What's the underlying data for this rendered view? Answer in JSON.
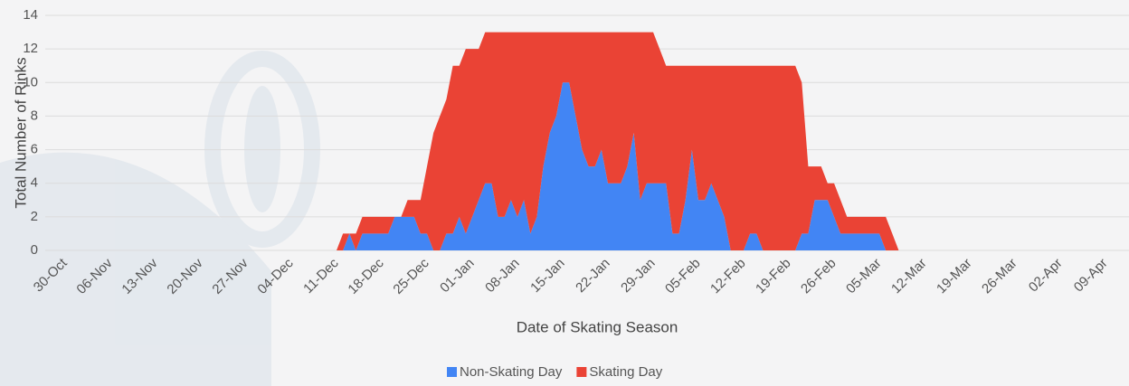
{
  "chart_data": {
    "type": "stacked-area",
    "y_label": "Total Number of Rinks",
    "x_label": "Date of Skating Season",
    "categories": [
      "30-Oct",
      null,
      null,
      null,
      null,
      null,
      null,
      "06-Nov",
      null,
      null,
      null,
      null,
      null,
      null,
      "13-Nov",
      null,
      null,
      null,
      null,
      null,
      null,
      "20-Nov",
      null,
      null,
      null,
      null,
      null,
      null,
      "27-Nov",
      null,
      null,
      null,
      null,
      null,
      null,
      "04-Dec",
      null,
      null,
      null,
      null,
      null,
      null,
      "11-Dec",
      null,
      null,
      null,
      null,
      null,
      null,
      "18-Dec",
      null,
      null,
      null,
      null,
      null,
      null,
      "25-Dec",
      null,
      null,
      null,
      null,
      null,
      null,
      "01-Jan",
      null,
      null,
      null,
      null,
      null,
      null,
      "08-Jan",
      null,
      null,
      null,
      null,
      null,
      null,
      "15-Jan",
      null,
      null,
      null,
      null,
      null,
      null,
      "22-Jan",
      null,
      null,
      null,
      null,
      null,
      null,
      "29-Jan",
      null,
      null,
      null,
      null,
      null,
      null,
      "05-Feb",
      null,
      null,
      null,
      null,
      null,
      null,
      "12-Feb",
      null,
      null,
      null,
      null,
      null,
      null,
      "19-Feb",
      null,
      null,
      null,
      null,
      null,
      null,
      "26-Feb",
      null,
      null,
      null,
      null,
      null,
      null,
      "05-Mar",
      null,
      null,
      null,
      null,
      null,
      null,
      "12-Mar",
      null,
      null,
      null,
      null,
      null,
      null,
      "19-Mar",
      null,
      null,
      null,
      null,
      null,
      null,
      "26-Mar",
      null,
      null,
      null,
      null,
      null,
      null,
      "02-Apr",
      null,
      null,
      null,
      null,
      null,
      null,
      "09-Apr"
    ],
    "series": [
      {
        "name": "Non-Skating Day",
        "color": "#4285f4",
        "values": [
          null,
          null,
          null,
          null,
          null,
          null,
          null,
          null,
          null,
          null,
          null,
          null,
          null,
          null,
          null,
          null,
          null,
          null,
          null,
          null,
          null,
          null,
          null,
          null,
          null,
          null,
          null,
          null,
          null,
          null,
          null,
          null,
          null,
          null,
          null,
          null,
          null,
          null,
          null,
          null,
          null,
          null,
          0,
          0,
          1,
          0,
          1,
          1,
          1,
          1,
          1,
          2,
          2,
          2,
          2,
          1,
          1,
          0,
          0,
          1,
          1,
          2,
          1,
          2,
          3,
          4,
          4,
          2,
          2,
          3,
          2,
          3,
          1,
          2,
          5,
          7,
          8,
          10,
          10,
          8,
          6,
          5,
          5,
          6,
          4,
          4,
          4,
          5,
          7,
          3,
          4,
          4,
          4,
          4,
          1,
          1,
          3,
          6,
          3,
          3,
          4,
          3,
          2,
          0,
          0,
          0,
          1,
          1,
          0,
          0,
          0,
          0,
          0,
          0,
          1,
          1,
          3,
          3,
          3,
          2,
          1,
          1,
          1,
          1,
          1,
          1,
          1,
          0,
          0,
          0,
          null,
          null,
          null,
          null,
          null,
          null,
          null,
          null,
          null,
          null,
          null,
          null,
          null,
          null,
          null,
          null,
          null,
          null,
          null,
          null,
          null,
          null,
          null,
          null,
          null,
          null,
          null,
          null,
          null,
          null,
          null,
          null
        ]
      },
      {
        "name": "Skating Day",
        "color": "#ea4335",
        "values": [
          null,
          null,
          null,
          null,
          null,
          null,
          null,
          null,
          null,
          null,
          null,
          null,
          null,
          null,
          null,
          null,
          null,
          null,
          null,
          null,
          null,
          null,
          null,
          null,
          null,
          null,
          null,
          null,
          null,
          null,
          null,
          null,
          null,
          null,
          null,
          null,
          null,
          null,
          null,
          null,
          null,
          null,
          0,
          1,
          0,
          1,
          1,
          1,
          1,
          1,
          1,
          0,
          0,
          1,
          1,
          2,
          4,
          7,
          8,
          8,
          10,
          9,
          11,
          10,
          9,
          9,
          9,
          11,
          11,
          10,
          11,
          10,
          12,
          11,
          8,
          6,
          5,
          3,
          3,
          5,
          7,
          8,
          8,
          7,
          9,
          9,
          9,
          8,
          6,
          10,
          9,
          9,
          8,
          7,
          10,
          10,
          8,
          5,
          8,
          8,
          7,
          8,
          9,
          11,
          11,
          11,
          10,
          10,
          11,
          11,
          11,
          11,
          11,
          11,
          9,
          4,
          2,
          2,
          1,
          2,
          2,
          1,
          1,
          1,
          1,
          1,
          1,
          2,
          1,
          0,
          null,
          null,
          null,
          null,
          null,
          null,
          null,
          null,
          null,
          null,
          null,
          null,
          null,
          null,
          null,
          null,
          null,
          null,
          null,
          null,
          null,
          null,
          null,
          null,
          null,
          null,
          null,
          null,
          null,
          null,
          null,
          null
        ]
      }
    ],
    "ylim": [
      0,
      14
    ],
    "yticks": [
      0,
      2,
      4,
      6,
      8,
      10,
      12,
      14
    ],
    "grid": true,
    "legend": "bottom"
  }
}
